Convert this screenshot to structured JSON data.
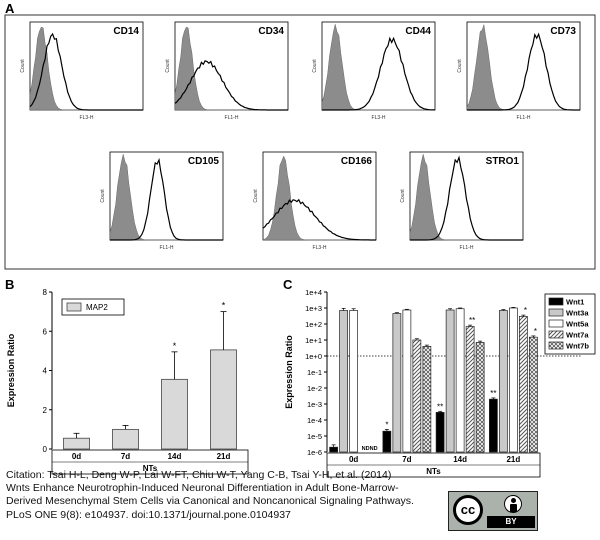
{
  "panels": {
    "a": "A",
    "b": "B",
    "c": "C"
  },
  "flow": {
    "histograms": [
      {
        "marker": "CD14",
        "axis_label": "FL3-H"
      },
      {
        "marker": "CD34",
        "axis_label": "FL1-H"
      },
      {
        "marker": "CD44",
        "axis_label": "FL3-H"
      },
      {
        "marker": "CD73",
        "axis_label": "FL1-H"
      },
      {
        "marker": "CD105",
        "axis_label": "FL1-H"
      },
      {
        "marker": "CD166",
        "axis_label": "FL3-H"
      },
      {
        "marker": "STRO1",
        "axis_label": "FL1-H"
      }
    ],
    "y_label": "Count"
  },
  "chart_data": [
    {
      "type": "bar",
      "panel": "B",
      "categories": [
        "0d",
        "7d",
        "14d",
        "21d"
      ],
      "series": [
        {
          "name": "MAP2",
          "values": [
            0.55,
            1.0,
            3.55,
            5.05
          ],
          "error": [
            0.25,
            0.2,
            1.4,
            1.95
          ]
        }
      ],
      "significance": [
        "",
        "",
        "*",
        "*"
      ],
      "ylabel": "Expression Ratio",
      "xlabel": "NTs",
      "ylim": [
        0,
        8
      ],
      "yticks": [
        "0",
        "2",
        "4",
        "6",
        "8"
      ],
      "legend_position": "top-left"
    },
    {
      "type": "bar",
      "panel": "C",
      "scale": "log",
      "categories": [
        "0d",
        "7d",
        "14d",
        "21d"
      ],
      "series": [
        {
          "name": "Wnt1",
          "values": [
            2e-06,
            2e-05,
            0.0003,
            0.002
          ],
          "error": [
            8e-07,
            6e-06,
            5e-05,
            0.0004
          ],
          "color": "#000000",
          "pattern": "solid"
        },
        {
          "name": "Wnt3a",
          "values": [
            700,
            450,
            750,
            700
          ],
          "error": [
            250,
            60,
            150,
            100
          ],
          "color": "#c9c9c9",
          "pattern": "solid"
        },
        {
          "name": "Wnt5a",
          "values": [
            700,
            750,
            900,
            1000
          ],
          "error": [
            200,
            80,
            100,
            100
          ],
          "color": "#ffffff",
          "pattern": "solid"
        },
        {
          "name": "Wnt7a",
          "values": [
            null,
            10,
            70,
            300
          ],
          "error": [
            null,
            2,
            15,
            60
          ],
          "color": "#ffffff",
          "pattern": "hatch"
        },
        {
          "name": "Wnt7b",
          "values": [
            null,
            4,
            7,
            15
          ],
          "error": [
            null,
            0.8,
            1.5,
            3
          ],
          "color": "#ffffff",
          "pattern": "crosshatch"
        }
      ],
      "not_detected": [
        "ND",
        "ND"
      ],
      "significance": [
        {
          "category": "7d",
          "series": "Wnt1",
          "mark": "*"
        },
        {
          "category": "14d",
          "series": "Wnt1",
          "mark": "**"
        },
        {
          "category": "14d",
          "series": "Wnt7a",
          "mark": "**"
        },
        {
          "category": "21d",
          "series": "Wnt1",
          "mark": "**"
        },
        {
          "category": "21d",
          "series": "Wnt7a",
          "mark": "*"
        },
        {
          "category": "21d",
          "series": "Wnt7b",
          "mark": "*"
        }
      ],
      "reference_line": 1,
      "ylabel": "Expression Ratio",
      "xlabel": "NTs",
      "ylim": [
        1e-06,
        10000.0
      ],
      "yticks": [
        "1e-6",
        "1e-5",
        "1e-4",
        "1e-3",
        "1e-2",
        "1e-1",
        "1e+0",
        "1e+1",
        "1e+2",
        "1e+3",
        "1e+4"
      ],
      "legend_position": "right"
    }
  ],
  "citation": {
    "line1": "Citation: Tsai H-L, Deng W-P, Lai W-FT, Chiu W-T, Yang C-B, Tsai Y-H, et al. (2014)",
    "line2": "Wnts Enhance Neurotrophin-Induced Neuronal Differentiation in Adult Bone-Marrow-",
    "line3": "Derived Mesenchymal Stem Cells via Canonical and Noncanonical Signaling Pathways.",
    "line4": "PLoS ONE 9(8): e104937. doi:10.1371/journal.pone.0104937"
  },
  "license": {
    "cc": "cc",
    "by": "BY"
  }
}
